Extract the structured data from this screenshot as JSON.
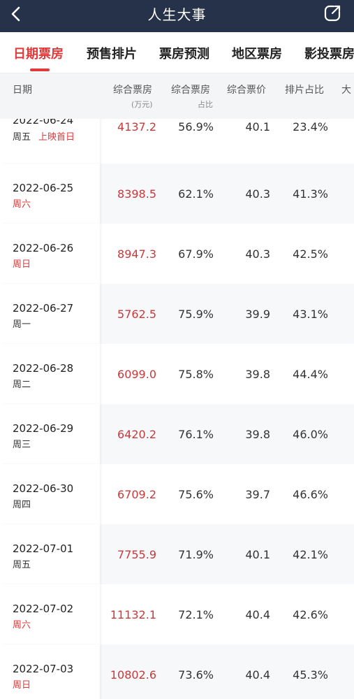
{
  "header": {
    "title": "人生大事",
    "back_icon": "chevron-left-icon",
    "share_icon": "share-icon",
    "background": "#26324a"
  },
  "tabs": [
    {
      "label": "日期票房",
      "active": true
    },
    {
      "label": "预售排片",
      "active": false
    },
    {
      "label": "票房预测",
      "active": false
    },
    {
      "label": "地区票房",
      "active": false
    },
    {
      "label": "影投票房",
      "active": false
    }
  ],
  "accent": "#e0393a",
  "columns": {
    "date": "日期",
    "boxoffice": "综合票房",
    "boxoffice_unit": "(万元)",
    "share": "综合票房",
    "share_sub": "占比",
    "price": "综合票价",
    "screening": "排片占比",
    "more": "大"
  },
  "rows": [
    {
      "date": "2022-06-24",
      "weekday": "周五",
      "note": "上映首日",
      "weekend": false,
      "boxoffice": "4137.2",
      "share": "56.9%",
      "price": "40.1",
      "screening": "23.4%"
    },
    {
      "date": "2022-06-25",
      "weekday": "周六",
      "note": "",
      "weekend": true,
      "boxoffice": "8398.5",
      "share": "62.1%",
      "price": "40.3",
      "screening": "41.3%"
    },
    {
      "date": "2022-06-26",
      "weekday": "周日",
      "note": "",
      "weekend": true,
      "boxoffice": "8947.3",
      "share": "67.9%",
      "price": "40.3",
      "screening": "42.5%"
    },
    {
      "date": "2022-06-27",
      "weekday": "周一",
      "note": "",
      "weekend": false,
      "boxoffice": "5762.5",
      "share": "75.9%",
      "price": "39.9",
      "screening": "43.1%"
    },
    {
      "date": "2022-06-28",
      "weekday": "周二",
      "note": "",
      "weekend": false,
      "boxoffice": "6099.0",
      "share": "75.8%",
      "price": "39.8",
      "screening": "44.4%"
    },
    {
      "date": "2022-06-29",
      "weekday": "周三",
      "note": "",
      "weekend": false,
      "boxoffice": "6420.2",
      "share": "76.1%",
      "price": "39.8",
      "screening": "46.0%"
    },
    {
      "date": "2022-06-30",
      "weekday": "周四",
      "note": "",
      "weekend": false,
      "boxoffice": "6709.2",
      "share": "75.6%",
      "price": "39.7",
      "screening": "46.6%"
    },
    {
      "date": "2022-07-01",
      "weekday": "周五",
      "note": "",
      "weekend": false,
      "boxoffice": "7755.9",
      "share": "71.9%",
      "price": "40.1",
      "screening": "42.1%"
    },
    {
      "date": "2022-07-02",
      "weekday": "周六",
      "note": "",
      "weekend": true,
      "boxoffice": "11132.1",
      "share": "72.1%",
      "price": "40.4",
      "screening": "42.6%"
    },
    {
      "date": "2022-07-03",
      "weekday": "周日",
      "note": "",
      "weekend": true,
      "boxoffice": "10802.6",
      "share": "73.6%",
      "price": "40.4",
      "screening": "45.3%"
    }
  ]
}
